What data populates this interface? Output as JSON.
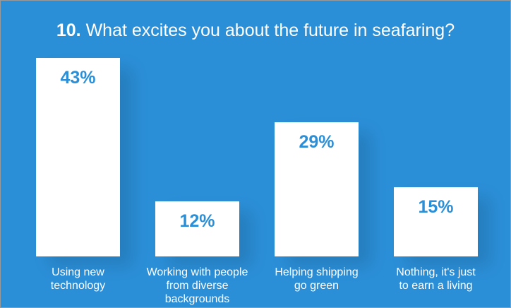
{
  "chart_data": {
    "type": "bar",
    "title_number": "10.",
    "title": "What excites you about the future in seafaring?",
    "categories": [
      "Using new\ntechnology",
      "Working with people\nfrom diverse\nbackgrounds",
      "Helping shipping\ngo green",
      "Nothing, it's just\nto earn a living"
    ],
    "values": [
      43,
      12,
      29,
      15
    ],
    "value_labels": [
      "43%",
      "12%",
      "29%",
      "15%"
    ],
    "color": "#ffffff"
  }
}
